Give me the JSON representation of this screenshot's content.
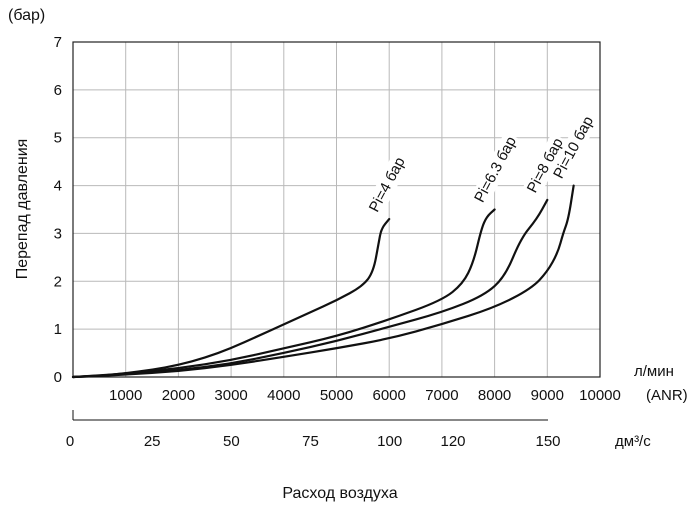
{
  "chart_data": {
    "type": "line",
    "title": "",
    "ylabel": "Перепад давления",
    "ylabel_unit": "(бар)",
    "xlabel": "Расход воздуха",
    "x_unit_primary": "л/мин",
    "x_unit_primary_suffix": "(ANR)",
    "x_unit_secondary": "дм³/с",
    "xlim": [
      0,
      10000
    ],
    "ylim": [
      0,
      7
    ],
    "grid": true,
    "y_ticks": [
      "0",
      "1",
      "2",
      "3",
      "4",
      "5",
      "6",
      "7"
    ],
    "x_ticks": [
      "1000",
      "2000",
      "3000",
      "4000",
      "5000",
      "6000",
      "7000",
      "8000",
      "9000",
      "10000"
    ],
    "x2_ticks": [
      {
        "label": "0",
        "value": 0
      },
      {
        "label": "25",
        "value": 25
      },
      {
        "label": "50",
        "value": 50
      },
      {
        "label": "75",
        "value": 75
      },
      {
        "label": "100",
        "value": 100
      },
      {
        "label": "120",
        "value": 120
      },
      {
        "label": "150",
        "value": 150
      }
    ],
    "series": [
      {
        "name": "Pi=4 бар",
        "points": [
          [
            0,
            0
          ],
          [
            500,
            0.02
          ],
          [
            1000,
            0.08
          ],
          [
            1500,
            0.15
          ],
          [
            2000,
            0.25
          ],
          [
            2500,
            0.4
          ],
          [
            3000,
            0.6
          ],
          [
            3500,
            0.85
          ],
          [
            4000,
            1.1
          ],
          [
            4500,
            1.35
          ],
          [
            5000,
            1.6
          ],
          [
            5500,
            1.9
          ],
          [
            5700,
            2.2
          ],
          [
            5800,
            2.8
          ],
          [
            5850,
            3.1
          ],
          [
            6000,
            3.3
          ]
        ]
      },
      {
        "name": "Pi=6.3 бар",
        "points": [
          [
            0,
            0
          ],
          [
            1000,
            0.07
          ],
          [
            2000,
            0.18
          ],
          [
            3000,
            0.35
          ],
          [
            4000,
            0.6
          ],
          [
            5000,
            0.85
          ],
          [
            6000,
            1.2
          ],
          [
            7000,
            1.6
          ],
          [
            7400,
            1.95
          ],
          [
            7600,
            2.4
          ],
          [
            7750,
            3.1
          ],
          [
            7850,
            3.35
          ],
          [
            8000,
            3.5
          ]
        ]
      },
      {
        "name": "Pi=8 бар",
        "points": [
          [
            0,
            0
          ],
          [
            1000,
            0.06
          ],
          [
            2000,
            0.14
          ],
          [
            3000,
            0.28
          ],
          [
            4000,
            0.5
          ],
          [
            5000,
            0.75
          ],
          [
            6000,
            1.05
          ],
          [
            7000,
            1.35
          ],
          [
            7800,
            1.7
          ],
          [
            8200,
            2.1
          ],
          [
            8500,
            2.9
          ],
          [
            8800,
            3.3
          ],
          [
            9000,
            3.7
          ]
        ]
      },
      {
        "name": "Pi=10 бар",
        "points": [
          [
            0,
            0
          ],
          [
            1000,
            0.05
          ],
          [
            2000,
            0.12
          ],
          [
            3000,
            0.25
          ],
          [
            4000,
            0.42
          ],
          [
            5000,
            0.6
          ],
          [
            6000,
            0.8
          ],
          [
            7000,
            1.1
          ],
          [
            8000,
            1.45
          ],
          [
            8700,
            1.85
          ],
          [
            9000,
            2.2
          ],
          [
            9200,
            2.6
          ],
          [
            9300,
            3.0
          ],
          [
            9400,
            3.3
          ],
          [
            9500,
            4.0
          ]
        ]
      }
    ]
  }
}
